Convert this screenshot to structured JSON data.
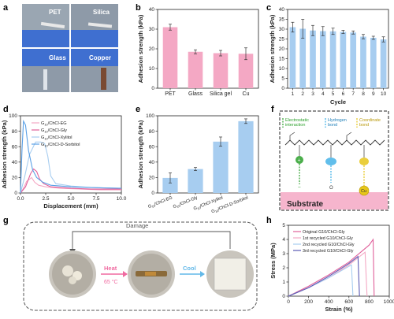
{
  "panels": {
    "a": {
      "label": "a",
      "photos": [
        {
          "label": "PET"
        },
        {
          "label": "Silica"
        },
        {
          "label": "Glass"
        },
        {
          "label": "Copper"
        }
      ],
      "colors": {
        "bg": "#8e9aa8",
        "glove": "#3f6fd0",
        "copper": "#7a4a32",
        "paper": "#e8e8e8"
      }
    },
    "f": {
      "label": "f",
      "legend": [
        "Electrostatic interaction",
        "Hydrogen bond",
        "Coordinate bond"
      ],
      "legend_lines": [
        [
          "Electrostatic",
          "interaction"
        ],
        [
          "Hydrogen",
          "bond"
        ],
        [
          "Coordinate",
          "bond"
        ]
      ],
      "substrate": "Substrate",
      "atoms": {
        "cu": "Cu",
        "o": "O",
        "plus": "+",
        "minus": "−"
      },
      "colors": {
        "substrate": "#f4a8c4",
        "electrostatic": "#2ca02c",
        "hydrogen": "#3aaee6",
        "coordinate": "#e6c619"
      }
    },
    "g": {
      "label": "g",
      "damage": "Damage",
      "heat": "Heat",
      "heat_temp": "65 °C",
      "cool": "Cool",
      "colors": {
        "heat": "#f06aa0",
        "cool": "#62b8e8"
      }
    }
  },
  "chart_data": [
    {
      "panel": "b",
      "type": "bar",
      "ylabel": "Adhesion strength (kPa)",
      "ylim": [
        0,
        40
      ],
      "yticks": [
        0,
        10,
        20,
        30,
        40
      ],
      "categories": [
        "PET",
        "Glass",
        "Silica gel",
        "Cu"
      ],
      "values": [
        31.0,
        18.5,
        17.8,
        17.5
      ],
      "errors": [
        1.5,
        1.0,
        1.4,
        3.0
      ],
      "color": "#f4a8c4"
    },
    {
      "panel": "c",
      "type": "bar",
      "xlabel": "Cycle",
      "ylabel": "Adhesion strength (kPa)",
      "ylim": [
        0,
        40
      ],
      "yticks": [
        0,
        5,
        10,
        15,
        20,
        25,
        30,
        35,
        40
      ],
      "categories": [
        "1",
        "2",
        "3",
        "4",
        "5",
        "6",
        "7",
        "8",
        "9",
        "10"
      ],
      "values": [
        31.0,
        30.2,
        29.3,
        29.0,
        28.9,
        28.6,
        28.3,
        26.2,
        25.6,
        24.8
      ],
      "errors": [
        2.5,
        4.8,
        2.6,
        2.3,
        1.6,
        0.8,
        0.8,
        1.1,
        0.8,
        1.3
      ],
      "color": "#a7cdf0"
    },
    {
      "panel": "d",
      "type": "line",
      "xlabel": "Displacement (mm)",
      "ylabel": "Adhesion strength (kPa)",
      "xlim": [
        0,
        10
      ],
      "ylim": [
        0,
        100
      ],
      "xticks": [
        0.0,
        2.5,
        5.0,
        7.5,
        10.0
      ],
      "xtick_labels": [
        "0.0",
        "2.5",
        "5.0",
        "7.5",
        "10.0"
      ],
      "yticks": [
        0,
        20,
        40,
        60,
        80,
        100
      ],
      "legend_position": "top-right",
      "series": [
        {
          "name": "G10/ChCl-EG",
          "color": "#f4a8c4",
          "x": [
            0,
            0.3,
            0.6,
            0.9,
            1.1,
            1.4,
            1.8,
            2.5,
            4,
            6,
            8,
            10
          ],
          "y": [
            0,
            6,
            15,
            18,
            20,
            14,
            10,
            8,
            6,
            5,
            4,
            4
          ]
        },
        {
          "name": "G10/ChCl-Gly",
          "color": "#e0609a",
          "x": [
            0,
            0.5,
            1.0,
            1.3,
            1.6,
            1.9,
            2.3,
            3,
            5,
            7,
            10
          ],
          "y": [
            0,
            8,
            25,
            31,
            28,
            18,
            12,
            8,
            6,
            5,
            5
          ]
        },
        {
          "name": "G10/ChCl-Xylitol",
          "color": "#a7cdf0",
          "x": [
            0,
            0.4,
            0.9,
            1.5,
            2.0,
            2.4,
            2.7,
            3.0,
            3.5,
            5,
            7,
            10
          ],
          "y": [
            0,
            20,
            50,
            66,
            66,
            64,
            48,
            22,
            12,
            9,
            7,
            6
          ]
        },
        {
          "name": "G10/ChCl-D-Sorbitol",
          "color": "#5aa0e6",
          "x": [
            0,
            0.15,
            0.3,
            0.5,
            0.8,
            1.2,
            1.6,
            2.2,
            3,
            5,
            7,
            10
          ],
          "y": [
            0,
            55,
            93,
            88,
            55,
            30,
            20,
            14,
            10,
            8,
            7,
            6
          ]
        }
      ]
    },
    {
      "panel": "e",
      "type": "bar",
      "ylabel": "Adhesion strength (kPa)",
      "ylim": [
        0,
        100
      ],
      "yticks": [
        0,
        20,
        40,
        60,
        80,
        100
      ],
      "categories": [
        "G10/ChCl-EG",
        "G10/ChCl-Gly",
        "G10/ChCl-Xylitol",
        "G10/ChCl-D-Sorbitol"
      ],
      "values": [
        19.5,
        31.0,
        66.5,
        93.0
      ],
      "errors": [
        6.5,
        2.0,
        6.0,
        3.0
      ],
      "color": "#a7cdf0"
    },
    {
      "panel": "h",
      "type": "line",
      "xlabel": "Strain (%)",
      "ylabel": "Stress (MPa)",
      "xlim": [
        0,
        1000
      ],
      "ylim": [
        0,
        5
      ],
      "xticks": [
        0,
        200,
        400,
        600,
        800,
        1000
      ],
      "yticks": [
        0,
        1,
        2,
        3,
        4,
        5
      ],
      "legend_position": "top-left",
      "series": [
        {
          "name": "Original G10/ChCl-Gly",
          "color": "#e0609a",
          "x": [
            0,
            200,
            400,
            600,
            800,
            840,
            850
          ],
          "y": [
            0,
            0.7,
            1.5,
            2.4,
            3.6,
            4.0,
            0
          ]
        },
        {
          "name": "1st recycled G10/ChCl-Gly",
          "color": "#f4a8c4",
          "x": [
            0,
            200,
            400,
            600,
            760,
            780
          ],
          "y": [
            0,
            0.6,
            1.3,
            2.2,
            3.1,
            0
          ]
        },
        {
          "name": "2nd recycled G10/ChCl-Gly",
          "color": "#a7cdf0",
          "x": [
            0,
            200,
            400,
            600,
            625,
            640
          ],
          "y": [
            0,
            0.6,
            1.3,
            2.1,
            2.2,
            0
          ]
        },
        {
          "name": "3rd recycled G10/ChCl-Gly",
          "color": "#5a5ab4",
          "x": [
            0,
            200,
            400,
            600,
            690,
            705
          ],
          "y": [
            0,
            0.6,
            1.4,
            2.3,
            2.8,
            0
          ]
        }
      ]
    }
  ]
}
